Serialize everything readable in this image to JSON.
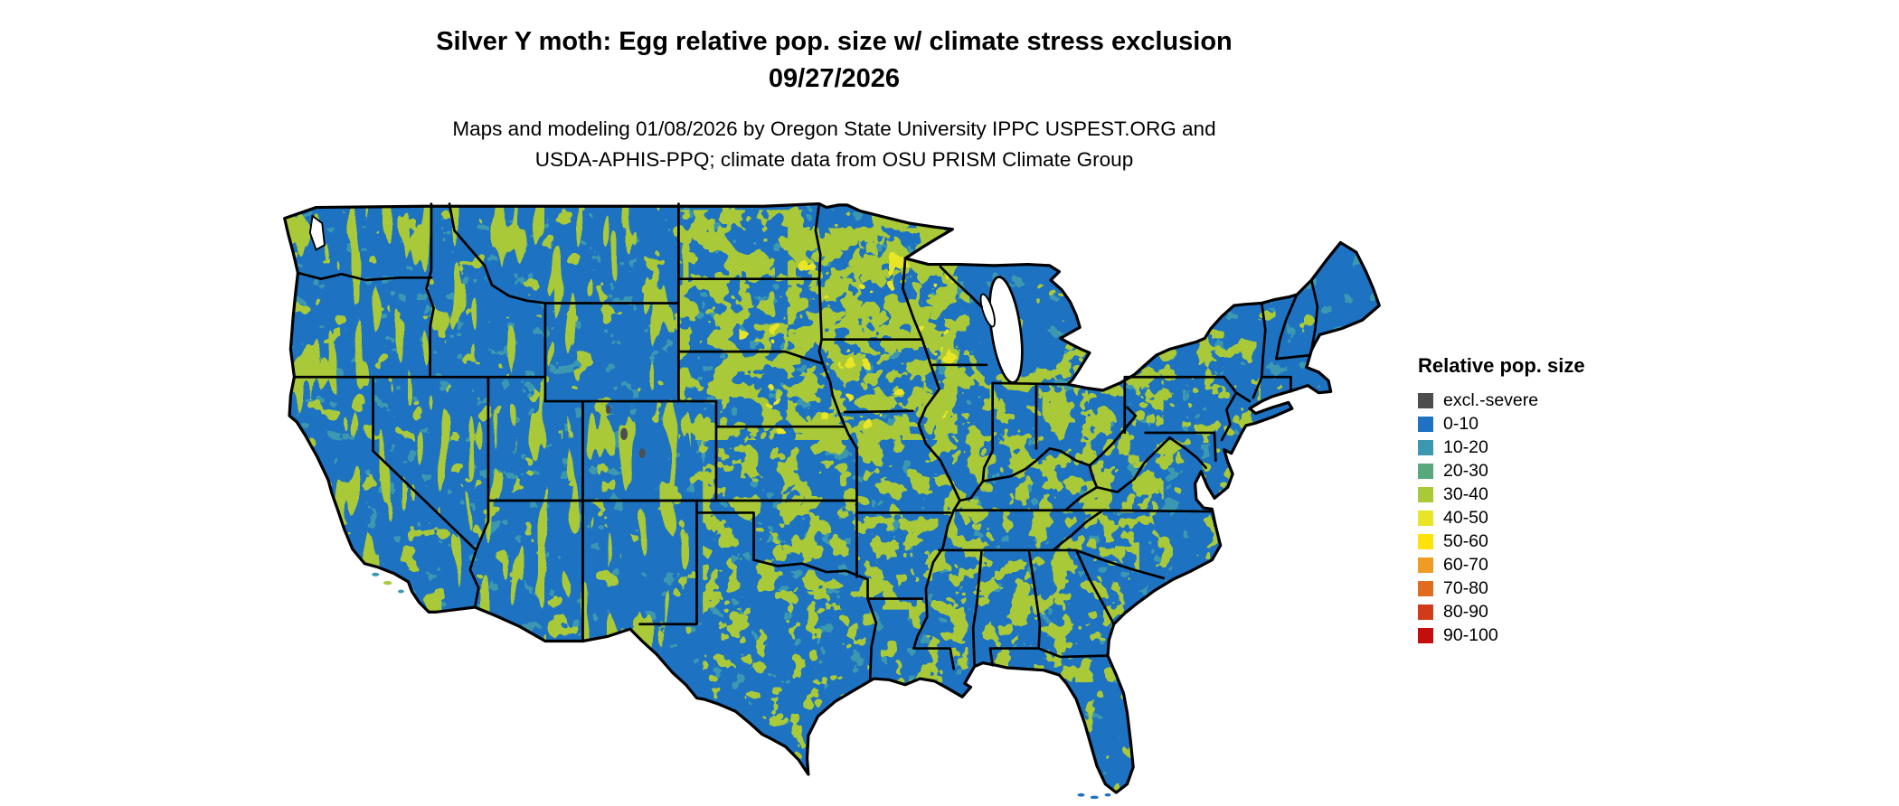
{
  "header": {
    "title_line1": "Silver Y moth: Egg relative pop. size w/ climate stress exclusion",
    "title_line2": "09/27/2026",
    "subtitle_line1": "Maps and modeling 01/08/2026 by Oregon State University IPPC USPEST.ORG and",
    "subtitle_line2": "USDA-APHIS-PPQ; climate data from OSU PRISM Climate Group"
  },
  "legend": {
    "title": "Relative pop. size",
    "items": [
      {
        "label": "excl.-severe",
        "color": "#4d4d4d"
      },
      {
        "label": "0-10",
        "color": "#1d72c2"
      },
      {
        "label": "10-20",
        "color": "#3a98b0"
      },
      {
        "label": "20-30",
        "color": "#57a97c"
      },
      {
        "label": "30-40",
        "color": "#a9c938"
      },
      {
        "label": "40-50",
        "color": "#e8e426"
      },
      {
        "label": "50-60",
        "color": "#ffe20a"
      },
      {
        "label": "60-70",
        "color": "#f09c24"
      },
      {
        "label": "70-80",
        "color": "#e06c1f"
      },
      {
        "label": "80-90",
        "color": "#d23b1a"
      },
      {
        "label": "90-100",
        "color": "#c40d0d"
      }
    ]
  },
  "map": {
    "description": "Continental US raster map",
    "colors": {
      "blue": "#1d72c2",
      "teal": "#3a98b0",
      "green": "#a9c938",
      "yellow": "#e8e426",
      "gray": "#4d4d4d",
      "border": "#000000",
      "water": "#ffffff"
    }
  }
}
